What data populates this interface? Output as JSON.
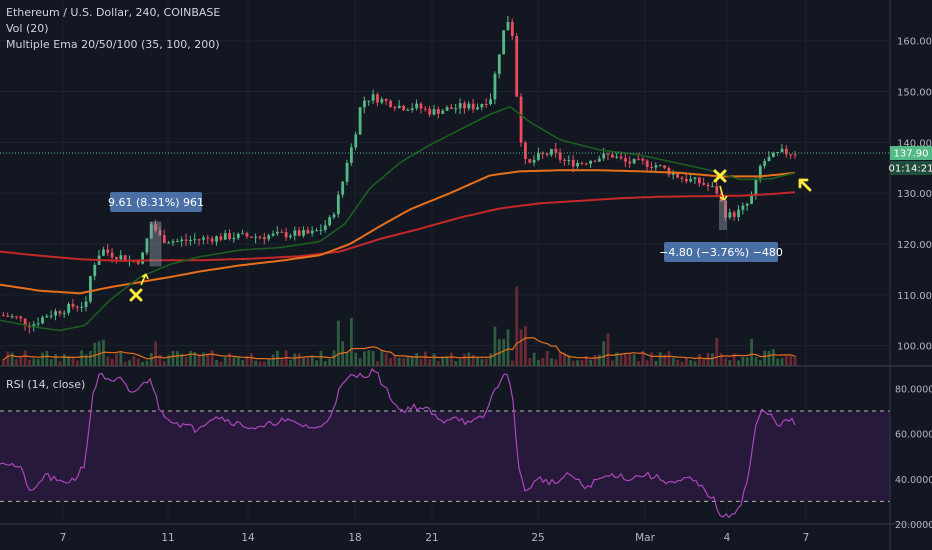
{
  "legends": {
    "symbol": "Ethereum / U.S. Dollar, 240, COINBASE",
    "vol": "Vol (20)",
    "ema": "Multiple Ema 20/50/100 (35, 100, 200)",
    "rsi": "RSI (14, close)"
  },
  "last_price_label": "137.90",
  "countdown_label": "01:14:21",
  "annotations": {
    "up_box": "9.61 (8.31%) 961",
    "down_box": "−4.80 (−3.76%) −480"
  },
  "colors": {
    "background": "#131722",
    "up": "#53b987",
    "down": "#eb4d5c",
    "ema_fast": "#1b5e20",
    "ema_mid": "#e8701a",
    "ema_slow": "#c62828",
    "rsi_line": "#ab47bc",
    "rsi_band": "#2a1a3d",
    "marker": "#ffeb3b",
    "box": "#4a6fa5"
  },
  "chart_data": {
    "type": "candlestick",
    "x_axis": {
      "ticks": [
        "7",
        "11",
        "14",
        "18",
        "21",
        "25",
        "Mar",
        "4",
        "7"
      ]
    },
    "price_axis": {
      "ticks": [
        100,
        110,
        120,
        130,
        140,
        150,
        160
      ],
      "range": [
        96,
        168
      ]
    },
    "rsi_axis": {
      "ticks": [
        20,
        40,
        60,
        80
      ],
      "tick_labels": [
        "20.0000",
        "40.0000",
        "60.0000",
        "80.0000"
      ],
      "range": [
        20,
        89
      ],
      "bands": [
        30,
        70
      ]
    },
    "price_keypoints": [
      [
        0,
        106
      ],
      [
        15,
        105.5
      ],
      [
        30,
        104
      ],
      [
        45,
        106
      ],
      [
        60,
        107
      ],
      [
        75,
        108
      ],
      [
        85,
        108
      ],
      [
        90,
        115
      ],
      [
        95,
        117
      ],
      [
        100,
        119
      ],
      [
        110,
        118
      ],
      [
        120,
        117.5
      ],
      [
        130,
        116.5
      ],
      [
        140,
        117
      ],
      [
        150,
        124
      ],
      [
        160,
        121
      ],
      [
        175,
        120.5
      ],
      [
        200,
        121
      ],
      [
        230,
        121.5
      ],
      [
        260,
        121.5
      ],
      [
        290,
        122
      ],
      [
        310,
        122
      ],
      [
        320,
        123
      ],
      [
        330,
        125
      ],
      [
        340,
        131
      ],
      [
        345,
        136
      ],
      [
        352,
        140
      ],
      [
        360,
        148
      ],
      [
        370,
        149
      ],
      [
        385,
        148
      ],
      [
        400,
        147
      ],
      [
        415,
        147
      ],
      [
        430,
        146
      ],
      [
        445,
        146.5
      ],
      [
        460,
        147
      ],
      [
        475,
        147
      ],
      [
        490,
        149
      ],
      [
        495,
        155
      ],
      [
        500,
        160
      ],
      [
        505,
        164
      ],
      [
        510,
        164
      ],
      [
        515,
        150
      ],
      [
        520,
        140
      ],
      [
        525,
        135
      ],
      [
        535,
        137
      ],
      [
        550,
        138
      ],
      [
        565,
        136
      ],
      [
        580,
        136
      ],
      [
        595,
        137
      ],
      [
        610,
        137.5
      ],
      [
        625,
        136
      ],
      [
        640,
        136
      ],
      [
        655,
        135.5
      ],
      [
        665,
        134.5
      ],
      [
        680,
        133
      ],
      [
        700,
        132
      ],
      [
        715,
        130.5
      ],
      [
        720,
        128
      ],
      [
        725,
        125.5
      ],
      [
        735,
        126
      ],
      [
        745,
        127.5
      ],
      [
        752,
        130
      ],
      [
        756,
        133
      ],
      [
        760,
        136
      ],
      [
        770,
        137
      ],
      [
        780,
        138
      ],
      [
        795,
        138
      ]
    ],
    "ema_fast_keypoints": [
      [
        0,
        105
      ],
      [
        40,
        103.5
      ],
      [
        60,
        103
      ],
      [
        85,
        104
      ],
      [
        110,
        109
      ],
      [
        140,
        113.5
      ],
      [
        170,
        116
      ],
      [
        200,
        117.5
      ],
      [
        240,
        118.8
      ],
      [
        280,
        119.3
      ],
      [
        320,
        120.5
      ],
      [
        345,
        124
      ],
      [
        370,
        131
      ],
      [
        400,
        136
      ],
      [
        430,
        139.5
      ],
      [
        460,
        142.5
      ],
      [
        490,
        145.5
      ],
      [
        510,
        147
      ],
      [
        530,
        144
      ],
      [
        560,
        140.5
      ],
      [
        600,
        138.5
      ],
      [
        640,
        137.5
      ],
      [
        680,
        135.8
      ],
      [
        710,
        134.5
      ],
      [
        740,
        132.7
      ],
      [
        770,
        132.8
      ],
      [
        795,
        134
      ]
    ],
    "ema_mid_keypoints": [
      [
        0,
        112
      ],
      [
        40,
        110.8
      ],
      [
        80,
        110.3
      ],
      [
        110,
        111.5
      ],
      [
        140,
        112.5
      ],
      [
        170,
        113.5
      ],
      [
        200,
        114.6
      ],
      [
        240,
        115.8
      ],
      [
        280,
        116.7
      ],
      [
        320,
        117.8
      ],
      [
        350,
        120
      ],
      [
        380,
        123.5
      ],
      [
        410,
        126.8
      ],
      [
        450,
        130
      ],
      [
        490,
        133.5
      ],
      [
        520,
        134.3
      ],
      [
        560,
        134.5
      ],
      [
        600,
        134.5
      ],
      [
        640,
        134.3
      ],
      [
        680,
        134
      ],
      [
        720,
        133.3
      ],
      [
        760,
        133.3
      ],
      [
        795,
        134
      ]
    ],
    "ema_slow_keypoints": [
      [
        0,
        118.5
      ],
      [
        40,
        117.7
      ],
      [
        80,
        117
      ],
      [
        120,
        116.7
      ],
      [
        160,
        116.8
      ],
      [
        200,
        116.8
      ],
      [
        250,
        117.1
      ],
      [
        300,
        117.6
      ],
      [
        340,
        118.5
      ],
      [
        380,
        121
      ],
      [
        420,
        123
      ],
      [
        460,
        125.2
      ],
      [
        500,
        127
      ],
      [
        540,
        128
      ],
      [
        580,
        128.5
      ],
      [
        620,
        129
      ],
      [
        660,
        129.3
      ],
      [
        700,
        129.4
      ],
      [
        740,
        129.5
      ],
      [
        770,
        129.8
      ],
      [
        795,
        130.2
      ]
    ],
    "rsi_keypoints": [
      [
        0,
        48
      ],
      [
        20,
        45
      ],
      [
        32,
        33
      ],
      [
        45,
        42
      ],
      [
        60,
        38
      ],
      [
        75,
        40
      ],
      [
        85,
        47
      ],
      [
        92,
        75
      ],
      [
        100,
        88
      ],
      [
        110,
        82
      ],
      [
        120,
        84
      ],
      [
        130,
        78
      ],
      [
        140,
        80
      ],
      [
        150,
        85
      ],
      [
        160,
        70
      ],
      [
        175,
        65
      ],
      [
        195,
        62
      ],
      [
        215,
        68
      ],
      [
        240,
        64
      ],
      [
        260,
        62
      ],
      [
        280,
        66
      ],
      [
        300,
        64
      ],
      [
        320,
        62
      ],
      [
        330,
        68
      ],
      [
        340,
        80
      ],
      [
        350,
        85
      ],
      [
        365,
        86
      ],
      [
        375,
        88
      ],
      [
        385,
        80
      ],
      [
        400,
        70
      ],
      [
        415,
        72
      ],
      [
        430,
        70
      ],
      [
        440,
        65
      ],
      [
        455,
        68
      ],
      [
        470,
        64
      ],
      [
        485,
        68
      ],
      [
        495,
        80
      ],
      [
        505,
        86
      ],
      [
        512,
        82
      ],
      [
        518,
        45
      ],
      [
        525,
        35
      ],
      [
        540,
        40
      ],
      [
        555,
        38
      ],
      [
        570,
        42
      ],
      [
        585,
        36
      ],
      [
        600,
        40
      ],
      [
        615,
        42
      ],
      [
        630,
        40
      ],
      [
        645,
        42
      ],
      [
        660,
        40
      ],
      [
        675,
        38
      ],
      [
        690,
        40
      ],
      [
        705,
        35
      ],
      [
        715,
        30
      ],
      [
        722,
        22
      ],
      [
        730,
        24
      ],
      [
        740,
        28
      ],
      [
        748,
        40
      ],
      [
        755,
        62
      ],
      [
        762,
        70
      ],
      [
        770,
        68
      ],
      [
        780,
        64
      ],
      [
        790,
        66
      ],
      [
        796,
        64
      ]
    ],
    "volume_spikes": [
      [
        92,
        30
      ],
      [
        100,
        40
      ],
      [
        155,
        28
      ],
      [
        338,
        55
      ],
      [
        350,
        48
      ],
      [
        495,
        52
      ],
      [
        505,
        50
      ],
      [
        516,
        90
      ],
      [
        522,
        60
      ],
      [
        605,
        45
      ],
      [
        715,
        30
      ],
      [
        750,
        28
      ],
      [
        770,
        25
      ]
    ]
  }
}
